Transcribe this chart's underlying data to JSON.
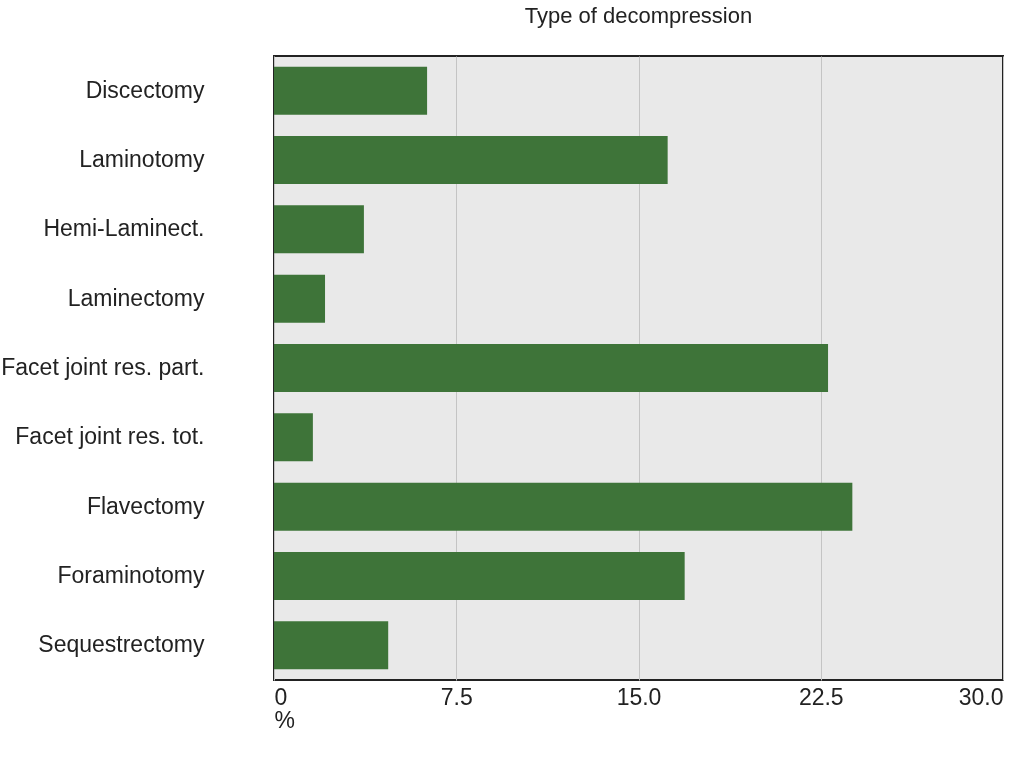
{
  "chart_data": {
    "type": "bar",
    "orientation": "horizontal",
    "title": "Type of decompression",
    "xlabel": "%",
    "categories": [
      "Discectomy",
      "Laminotomy",
      "Hemi-Laminect.",
      "Laminectomy",
      "Facet joint res. part.",
      "Facet joint res. tot.",
      "Flavectomy",
      "Foraminotomy",
      "Sequestrectomy"
    ],
    "values": [
      6.3,
      16.2,
      3.7,
      2.1,
      22.8,
      1.6,
      23.8,
      16.9,
      4.7
    ],
    "color": "#3e7439",
    "xlim": [
      0,
      30
    ],
    "xticks": [
      0,
      7.5,
      {
        "value": 15,
        "label": "15.0"
      },
      22.5,
      {
        "value": 30,
        "label": "30.0"
      }
    ],
    "grid": "x"
  }
}
